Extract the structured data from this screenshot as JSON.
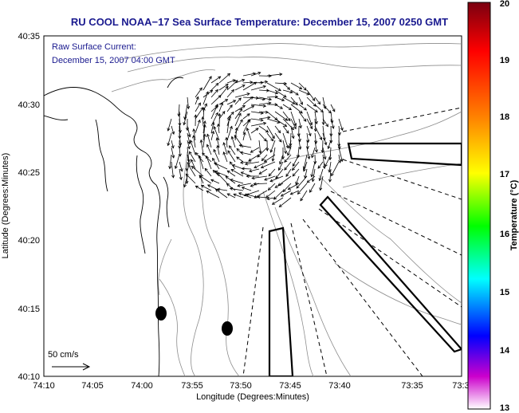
{
  "title": "RU COOL  NOAA−17  Sea Surface Temperature:  December 15, 2007 0250 GMT",
  "annotation": {
    "line1": "Raw Surface Current:",
    "line2": "December 15, 2007 04:00 GMT"
  },
  "scale_label": "50 cm/s",
  "x_axis": {
    "label": "Longitude (Degrees:Minutes)",
    "ticks": [
      "74:10",
      "74:05",
      "74:00",
      "73:55",
      "73:50",
      "73:45",
      "73:40",
      "73:35",
      "73:3"
    ]
  },
  "y_axis": {
    "label": "Latitude (Degrees:Minutes)",
    "ticks": [
      "40:35",
      "40:30",
      "40:25",
      "40:20",
      "40:15",
      "40:10"
    ]
  },
  "colorbar": {
    "label": "Temperature (°C)",
    "ticks": [
      "20",
      "19",
      "18",
      "17",
      "16",
      "15",
      "14",
      "13"
    ],
    "colors": [
      "#7a0010",
      "#ff0000",
      "#ff8000",
      "#ffff00",
      "#00ff00",
      "#00ffff",
      "#0000ff",
      "#cc00cc",
      "#ffffff"
    ]
  },
  "colors": {
    "title": "#1a1a8f",
    "coastline": "#000000",
    "bathymetry": "#8c8c8c",
    "vectors": "#000000"
  },
  "icons": {
    "buoy_marker": "black-ellipse",
    "current_vector": "arrow"
  }
}
